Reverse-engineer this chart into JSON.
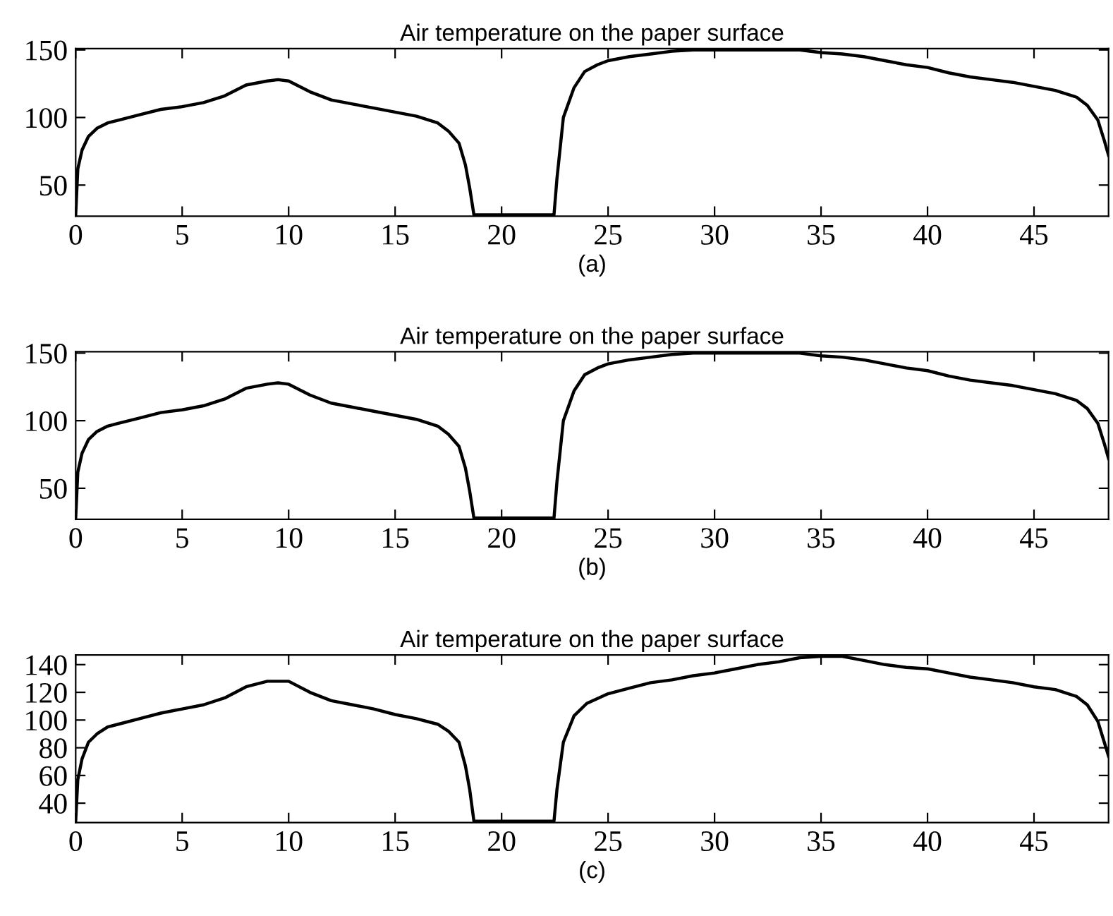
{
  "chart_data": [
    {
      "type": "line",
      "title": "Air temperature on the paper surface",
      "xlabel": "(a)",
      "color": "#000000",
      "xlim": [
        0,
        48.5
      ],
      "ylim": [
        27,
        151
      ],
      "xticks": [
        0,
        5,
        10,
        15,
        20,
        25,
        30,
        35,
        40,
        45
      ],
      "yticks": [
        50,
        100,
        150
      ],
      "x": [
        0,
        0.1,
        0.3,
        0.6,
        1,
        1.5,
        2,
        3,
        4,
        5,
        6,
        7,
        8,
        9,
        9.5,
        10,
        11,
        12,
        13,
        14,
        15,
        16,
        17,
        17.5,
        18,
        18.3,
        18.5,
        18.7,
        22.46,
        22.6,
        22.9,
        23.4,
        23.9,
        24.5,
        25,
        26,
        27,
        28,
        29,
        34,
        35,
        36,
        37,
        38,
        39,
        40,
        41,
        42,
        43,
        44,
        45,
        46,
        47,
        47.5,
        48,
        48.3,
        48.5
      ],
      "values": [
        28,
        62,
        76,
        86,
        92,
        96,
        98,
        102,
        106,
        108,
        111,
        116,
        124,
        127,
        128,
        127,
        119,
        113,
        110,
        107,
        104,
        101,
        96,
        90,
        81,
        65,
        48,
        28,
        28,
        55,
        100,
        122,
        134,
        139,
        142,
        145,
        147,
        149,
        150,
        150,
        148,
        147,
        145,
        142,
        139,
        137,
        133,
        130,
        128,
        126,
        123,
        120,
        115,
        109,
        98,
        83,
        72
      ]
    },
    {
      "type": "line",
      "title": "Air temperature on the paper surface",
      "xlabel": "(b)",
      "color": "#000000",
      "xlim": [
        0,
        48.5
      ],
      "ylim": [
        27,
        151
      ],
      "xticks": [
        0,
        5,
        10,
        15,
        20,
        25,
        30,
        35,
        40,
        45
      ],
      "yticks": [
        50,
        100,
        150
      ],
      "x": [
        0,
        0.1,
        0.3,
        0.6,
        1,
        1.5,
        2,
        3,
        4,
        5,
        6,
        7,
        8,
        9,
        9.5,
        10,
        11,
        12,
        13,
        14,
        15,
        16,
        17,
        17.5,
        18,
        18.3,
        18.5,
        18.7,
        22.46,
        22.6,
        22.9,
        23.4,
        23.9,
        24.5,
        25,
        26,
        27,
        28,
        29,
        34,
        35,
        36,
        37,
        38,
        39,
        40,
        41,
        42,
        43,
        44,
        45,
        46,
        47,
        47.5,
        48,
        48.3,
        48.5
      ],
      "values": [
        28,
        62,
        76,
        86,
        92,
        96,
        98,
        102,
        106,
        108,
        111,
        116,
        124,
        127,
        128,
        127,
        119,
        113,
        110,
        107,
        104,
        101,
        96,
        90,
        81,
        65,
        48,
        28,
        28,
        55,
        100,
        122,
        134,
        139,
        142,
        145,
        147,
        149,
        150,
        150,
        148,
        147,
        145,
        142,
        139,
        137,
        133,
        130,
        128,
        126,
        123,
        120,
        115,
        109,
        98,
        83,
        72
      ]
    },
    {
      "type": "line",
      "title": "Air temperature on the paper surface",
      "xlabel": "(c)",
      "color": "#000000",
      "xlim": [
        0,
        48.5
      ],
      "ylim": [
        26,
        147
      ],
      "xticks": [
        0,
        5,
        10,
        15,
        20,
        25,
        30,
        35,
        40,
        45
      ],
      "yticks": [
        40,
        60,
        80,
        100,
        120,
        140
      ],
      "x": [
        0,
        0.1,
        0.3,
        0.6,
        1,
        1.5,
        2,
        3,
        4,
        5,
        6,
        7,
        8,
        9,
        10,
        11,
        12,
        13,
        14,
        15,
        16,
        17,
        17.5,
        18,
        18.3,
        18.5,
        18.7,
        22.46,
        22.6,
        22.9,
        23.4,
        24,
        25,
        26,
        27,
        28,
        29,
        30,
        31,
        32,
        33,
        34,
        35,
        36,
        37,
        38,
        39,
        40,
        41,
        42,
        43,
        44,
        45,
        46,
        47,
        47.5,
        48,
        48.3,
        48.5
      ],
      "values": [
        27,
        57,
        72,
        84,
        90,
        95,
        97,
        101,
        105,
        108,
        111,
        116,
        124,
        128,
        128,
        120,
        114,
        111,
        108,
        104,
        101,
        97,
        92,
        84,
        67,
        50,
        27,
        27,
        50,
        84,
        103,
        112,
        119,
        123,
        127,
        129,
        132,
        134,
        137,
        140,
        142,
        145,
        146,
        146,
        143,
        140,
        138,
        137,
        134,
        131,
        129,
        127,
        124,
        122,
        117,
        111,
        99,
        84,
        74
      ]
    }
  ]
}
